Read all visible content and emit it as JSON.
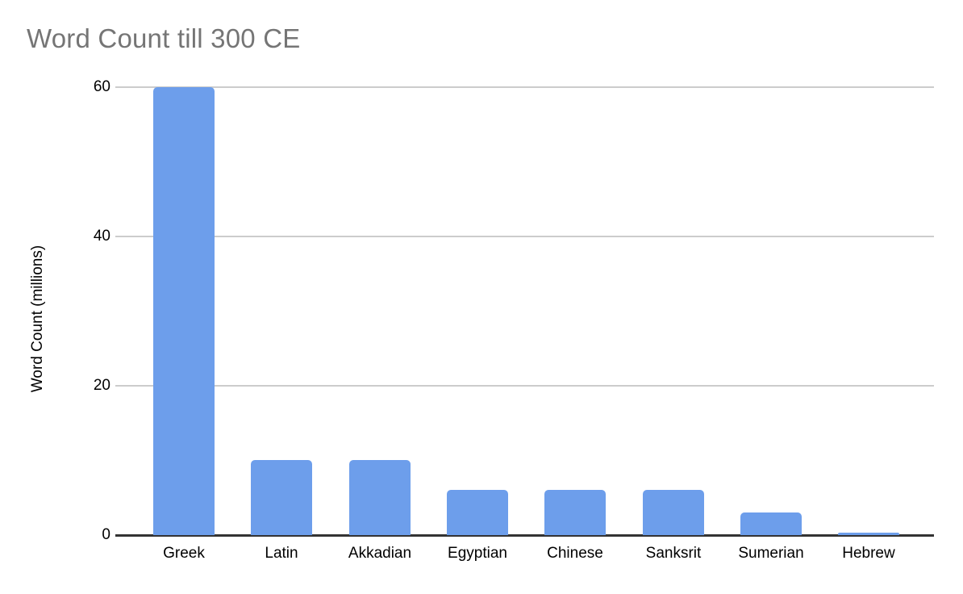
{
  "chart_data": {
    "type": "bar",
    "title": "Word Count till 300 CE",
    "xlabel": "",
    "ylabel": "Word Count (millions)",
    "categories": [
      "Greek",
      "Latin",
      "Akkadian",
      "Egyptian",
      "Chinese",
      "Sanksrit",
      "Sumerian",
      "Hebrew"
    ],
    "values": [
      60,
      10,
      10,
      6,
      6,
      6,
      3,
      0.3
    ],
    "ylim": [
      0,
      60
    ],
    "yticks": [
      0,
      20,
      40,
      60
    ],
    "grid": true,
    "legend": false,
    "colors": {
      "bar": "#6D9EEB",
      "title": "#757575",
      "axis_text": "#000000",
      "gridline": "#cccccc",
      "axis_line": "#333333",
      "background": "#ffffff"
    }
  }
}
